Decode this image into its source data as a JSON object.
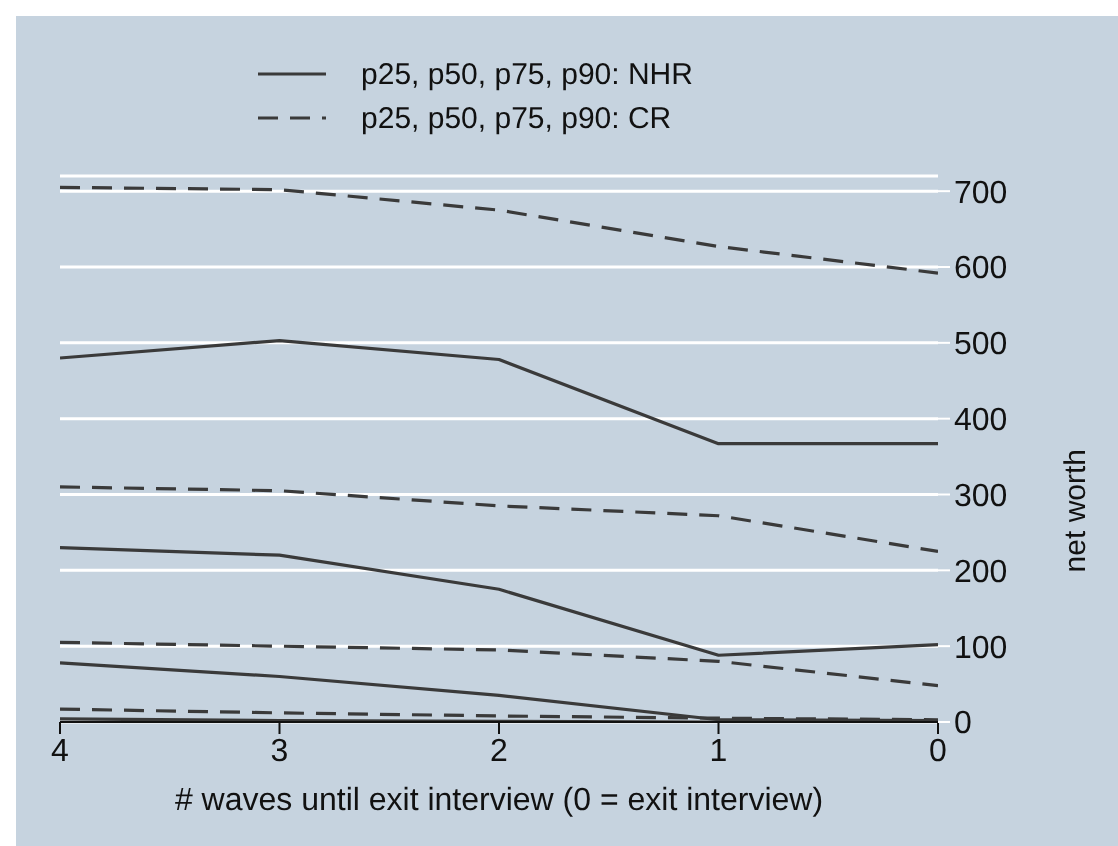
{
  "chart_data": {
    "type": "line",
    "xlabel": "# waves until exit interview (0 = exit interview)",
    "ylabel": "net worth",
    "x": [
      4,
      3,
      2,
      1,
      0
    ],
    "xlim": [
      4,
      0
    ],
    "xticks": [
      4,
      3,
      2,
      1,
      0
    ],
    "ylim": [
      0,
      720
    ],
    "yticks": [
      0,
      100,
      200,
      300,
      400,
      500,
      600,
      700
    ],
    "grid": "y",
    "legend": "top",
    "marker": "none",
    "series": [
      {
        "name": "p25, p50, p75, p90: NHR",
        "color": "#3a3a3a",
        "line_style": "solid",
        "values": [
          4,
          2,
          1,
          0,
          0
        ]
      },
      {
        "color": "#3a3a3a",
        "line_style": "solid",
        "values": [
          78,
          60,
          35,
          3,
          2
        ]
      },
      {
        "color": "#3a3a3a",
        "line_style": "solid",
        "values": [
          230,
          220,
          175,
          88,
          102
        ]
      },
      {
        "color": "#3a3a3a",
        "line_style": "solid",
        "values": [
          480,
          503,
          478,
          367,
          367
        ]
      },
      {
        "name": "p25, p50, p75, p90: CR",
        "color": "#3a3a3a",
        "line_style": "dashed",
        "values": [
          17,
          12,
          8,
          5,
          3
        ]
      },
      {
        "color": "#3a3a3a",
        "line_style": "dashed",
        "values": [
          105,
          100,
          95,
          80,
          48
        ]
      },
      {
        "color": "#3a3a3a",
        "line_style": "dashed",
        "values": [
          310,
          305,
          285,
          272,
          225
        ]
      },
      {
        "color": "#3a3a3a",
        "line_style": "dashed",
        "values": [
          705,
          702,
          675,
          627,
          592
        ]
      }
    ]
  }
}
